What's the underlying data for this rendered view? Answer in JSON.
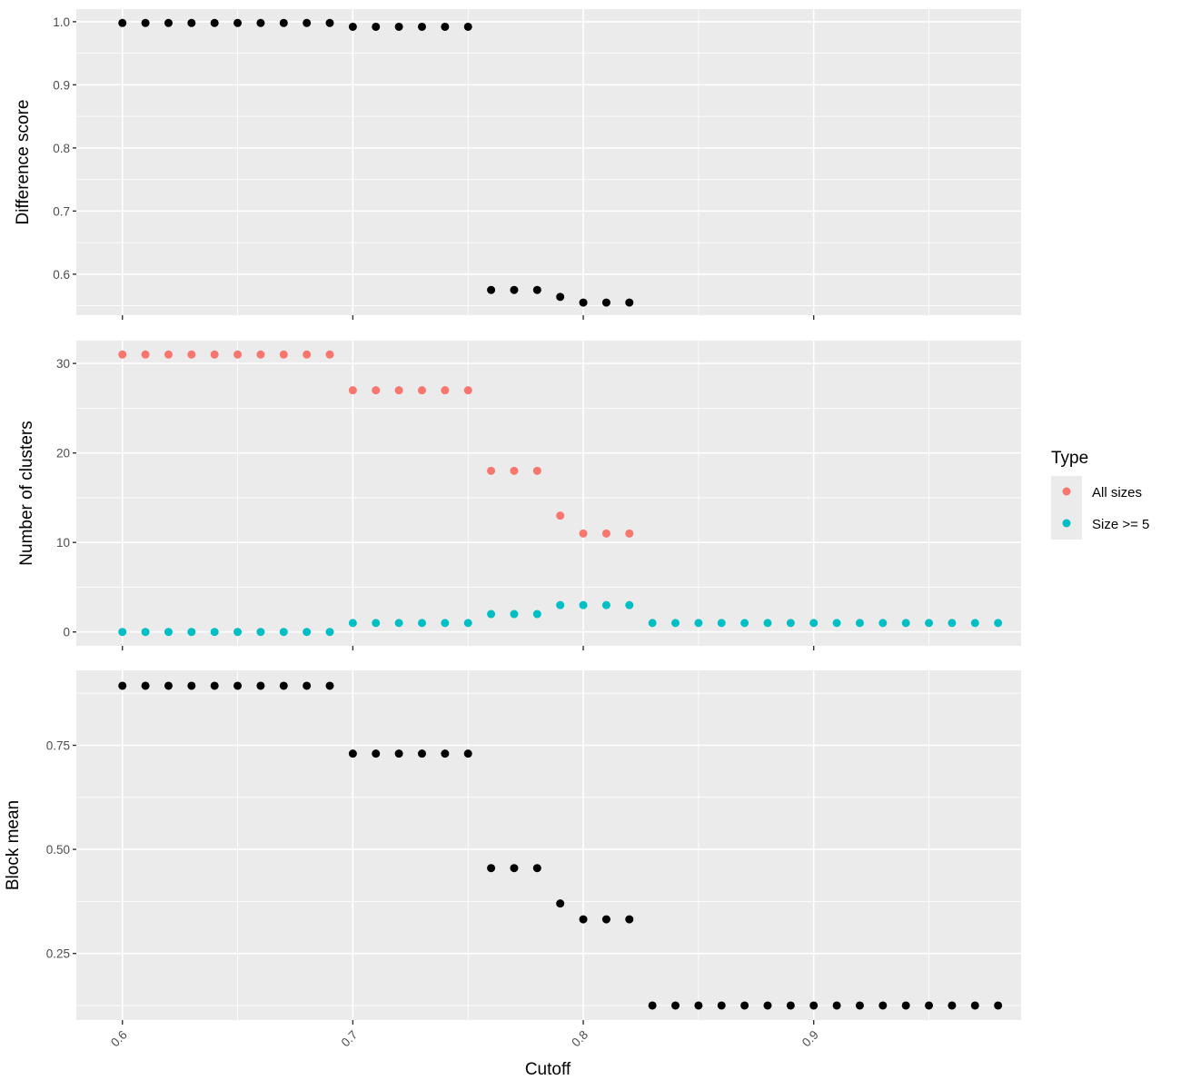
{
  "chart_data": {
    "type": "scatter",
    "xlabel": "Cutoff",
    "xlim": [
      0.58,
      0.99
    ],
    "x_ticks": [
      0.6,
      0.7,
      0.8,
      0.9
    ],
    "x_tick_labels": [
      "0.6",
      "0.7",
      "0.8",
      "0.9"
    ],
    "grid": true,
    "legend": {
      "title": "Type",
      "placement": "right",
      "entries": [
        {
          "label": "All sizes",
          "color": "#F8766D"
        },
        {
          "label": "Size >= 5",
          "color": "#00BFC4"
        }
      ]
    },
    "panels": [
      {
        "ylabel": "Difference score",
        "ylim": [
          0.535,
          1.02
        ],
        "y_ticks": [
          0.6,
          0.7,
          0.8,
          0.9,
          1.0
        ],
        "y_tick_labels": [
          "0.6",
          "0.7",
          "0.8",
          "0.9",
          "1.0"
        ],
        "series": [
          {
            "color": "#000000",
            "x": [
              0.6,
              0.61,
              0.62,
              0.63,
              0.64,
              0.65,
              0.66,
              0.67,
              0.68,
              0.69,
              0.7,
              0.71,
              0.72,
              0.73,
              0.74,
              0.75,
              0.76,
              0.77,
              0.78,
              0.79,
              0.8,
              0.81,
              0.82
            ],
            "y": [
              0.998,
              0.998,
              0.998,
              0.998,
              0.998,
              0.998,
              0.998,
              0.998,
              0.998,
              0.998,
              0.992,
              0.992,
              0.992,
              0.992,
              0.992,
              0.992,
              0.575,
              0.575,
              0.575,
              0.564,
              0.555,
              0.555,
              0.555
            ]
          }
        ]
      },
      {
        "ylabel": "Number of clusters",
        "ylim": [
          -1.55,
          32.55
        ],
        "y_ticks": [
          0,
          10,
          20,
          30
        ],
        "y_tick_labels": [
          "0",
          "10",
          "20",
          "30"
        ],
        "series": [
          {
            "name": "All sizes",
            "color": "#F8766D",
            "x": [
              0.6,
              0.61,
              0.62,
              0.63,
              0.64,
              0.65,
              0.66,
              0.67,
              0.68,
              0.69,
              0.7,
              0.71,
              0.72,
              0.73,
              0.74,
              0.75,
              0.76,
              0.77,
              0.78,
              0.79,
              0.8,
              0.81,
              0.82
            ],
            "y": [
              31,
              31,
              31,
              31,
              31,
              31,
              31,
              31,
              31,
              31,
              27,
              27,
              27,
              27,
              27,
              27,
              18,
              18,
              18,
              13,
              11,
              11,
              11
            ]
          },
          {
            "name": "Size >= 5",
            "color": "#00BFC4",
            "x": [
              0.6,
              0.61,
              0.62,
              0.63,
              0.64,
              0.65,
              0.66,
              0.67,
              0.68,
              0.69,
              0.7,
              0.71,
              0.72,
              0.73,
              0.74,
              0.75,
              0.76,
              0.77,
              0.78,
              0.79,
              0.8,
              0.81,
              0.82,
              0.83,
              0.84,
              0.85,
              0.86,
              0.87,
              0.88,
              0.89,
              0.9,
              0.91,
              0.92,
              0.93,
              0.94,
              0.95,
              0.96,
              0.97,
              0.98
            ],
            "y": [
              0,
              0,
              0,
              0,
              0,
              0,
              0,
              0,
              0,
              0,
              1,
              1,
              1,
              1,
              1,
              1,
              2,
              2,
              2,
              3,
              3,
              3,
              3,
              1,
              1,
              1,
              1,
              1,
              1,
              1,
              1,
              1,
              1,
              1,
              1,
              1,
              1,
              1,
              1
            ]
          }
        ]
      },
      {
        "ylabel": "Block mean",
        "ylim": [
          0.09,
          0.93
        ],
        "y_ticks": [
          0.25,
          0.5,
          0.75
        ],
        "y_tick_labels": [
          "0.25",
          "0.50",
          "0.75"
        ],
        "series": [
          {
            "color": "#000000",
            "x": [
              0.6,
              0.61,
              0.62,
              0.63,
              0.64,
              0.65,
              0.66,
              0.67,
              0.68,
              0.69,
              0.7,
              0.71,
              0.72,
              0.73,
              0.74,
              0.75,
              0.76,
              0.77,
              0.78,
              0.79,
              0.8,
              0.81,
              0.82,
              0.83,
              0.84,
              0.85,
              0.86,
              0.87,
              0.88,
              0.89,
              0.9,
              0.91,
              0.92,
              0.93,
              0.94,
              0.95,
              0.96,
              0.97,
              0.98
            ],
            "y": [
              0.893,
              0.893,
              0.893,
              0.893,
              0.893,
              0.893,
              0.893,
              0.893,
              0.893,
              0.893,
              0.73,
              0.73,
              0.73,
              0.73,
              0.73,
              0.73,
              0.455,
              0.455,
              0.455,
              0.37,
              0.332,
              0.332,
              0.332,
              0.125,
              0.125,
              0.125,
              0.125,
              0.125,
              0.125,
              0.125,
              0.125,
              0.125,
              0.125,
              0.125,
              0.125,
              0.125,
              0.125,
              0.125,
              0.125
            ]
          }
        ]
      }
    ]
  }
}
